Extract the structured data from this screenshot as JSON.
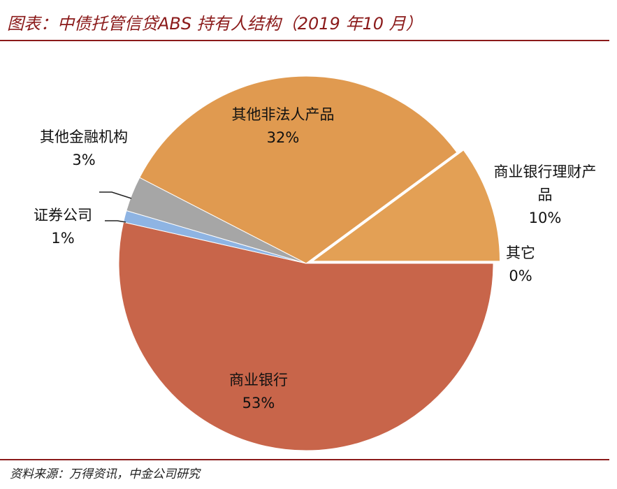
{
  "chart_data": {
    "type": "pie",
    "title": "图表：中债托管信贷ABS 持有人结构（2019 年10 月）",
    "source": "资料来源：万得资讯，中金公司研究",
    "categories": [
      "商业银行",
      "证券公司",
      "其他金融机构",
      "其他非法人产品",
      "商业银行理财产品",
      "其它"
    ],
    "values": [
      53,
      1,
      3,
      32,
      10,
      0
    ],
    "value_labels": [
      "53%",
      "1%",
      "3%",
      "32%",
      "10%",
      "0%"
    ],
    "colors": [
      "#c8654a",
      "#8eb4e3",
      "#a6a6a6",
      "#e09a50",
      "#e3a055",
      "#d8ad7e"
    ]
  }
}
